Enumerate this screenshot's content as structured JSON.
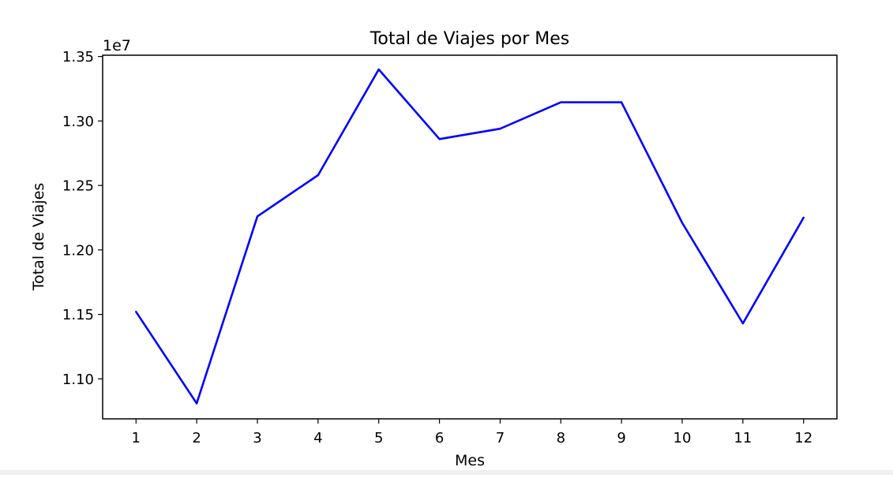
{
  "chart_data": {
    "type": "line",
    "title": "Total de Viajes por Mes",
    "xlabel": "Mes",
    "ylabel": "Total de Viajes",
    "y_offset_label": "1e7",
    "x": [
      1,
      2,
      3,
      4,
      5,
      6,
      7,
      8,
      9,
      10,
      11,
      12
    ],
    "x_tick_labels": [
      "1",
      "2",
      "3",
      "4",
      "5",
      "6",
      "7",
      "8",
      "9",
      "10",
      "11",
      "12"
    ],
    "y_ticks": [
      11000000,
      11500000,
      12000000,
      12500000,
      13000000,
      13500000
    ],
    "y_tick_labels": [
      "1.10",
      "1.15",
      "1.20",
      "1.25",
      "1.30",
      "1.35"
    ],
    "xlim": [
      0.45,
      12.55
    ],
    "ylim": [
      10690000,
      13510000
    ],
    "series": [
      {
        "color": "#0000ff",
        "values": [
          11520000,
          10810000,
          12260000,
          12580000,
          13400000,
          12860000,
          12940000,
          13145000,
          13145000,
          12210000,
          11430000,
          12250000
        ]
      }
    ],
    "grid": false,
    "legend": "none"
  }
}
